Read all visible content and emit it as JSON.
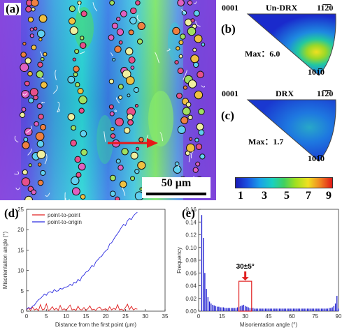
{
  "panel_labels": {
    "a": "(a)",
    "b": "(b)",
    "c": "(c)",
    "d": "(d)",
    "e": "(e)"
  },
  "map": {
    "scale_bar": "50 μm"
  },
  "ipf_top": {
    "title": "Un-DRX",
    "left_corner": "0001",
    "right_corner": "11̅2̅0",
    "bottom_corner": "101̅0",
    "max_label": "Max：6.0"
  },
  "ipf_bottom": {
    "title": "DRX",
    "left_corner": "0001",
    "right_corner": "11̅2̅0",
    "bottom_corner": "101̅0",
    "max_label": "Max：1.7"
  },
  "colorbar": {
    "ticks": [
      "1",
      "3",
      "5",
      "7",
      "9"
    ]
  },
  "colors": {
    "blue_series": "#2a2ae0",
    "red_series": "#e02020",
    "bar": "#2020d0",
    "highlight": "#e02020"
  },
  "chart_data": [
    {
      "type": "line",
      "ylabel": "Misorientation angle (°)",
      "xlabel": "Distance from the first point (μm)",
      "xlim": [
        0,
        35
      ],
      "ylim": [
        0,
        25
      ],
      "xticks": [
        "0",
        "5",
        "10",
        "15",
        "20",
        "25",
        "30",
        "35"
      ],
      "yticks": [
        "0",
        "5",
        "10",
        "15",
        "20",
        "25"
      ],
      "legend_placement": "top-left",
      "series": [
        {
          "name": "point-to-point",
          "color": "#e02020",
          "x": [
            0,
            0.5,
            1,
            1.5,
            2,
            2.5,
            3,
            3.5,
            4,
            4.5,
            5,
            5.5,
            6,
            6.5,
            7,
            7.5,
            8,
            8.5,
            9,
            9.5,
            10,
            10.5,
            11,
            11.5,
            12,
            12.5,
            13,
            13.5,
            14,
            14.5,
            15,
            15.5,
            16,
            16.5,
            17,
            17.5,
            18,
            18.5,
            19,
            19.5,
            20,
            20.5,
            21,
            21.5,
            22,
            22.5,
            23,
            23.5,
            24,
            24.5,
            25,
            25.5,
            26,
            26.5,
            27,
            27.5,
            28
          ],
          "y": [
            0.3,
            0.8,
            0.2,
            1.0,
            0.3,
            0.6,
            0.1,
            1.6,
            0.3,
            0.5,
            1.8,
            0.2,
            0.4,
            1.1,
            0.3,
            0.7,
            0.2,
            1.4,
            0.3,
            0.6,
            0.2,
            0.9,
            1.5,
            0.3,
            0.5,
            0.2,
            1.2,
            0.4,
            0.3,
            0.9,
            0.2,
            0.6,
            1.3,
            0.3,
            0.5,
            0.2,
            0.8,
            1.0,
            0.3,
            0.4,
            0.6,
            0.2,
            1.1,
            0.3,
            0.7,
            0.4,
            1.6,
            0.3,
            0.5,
            0.2,
            0.9,
            1.7,
            0.4,
            1.2,
            0.3,
            0.6,
            0.5
          ]
        },
        {
          "name": "point-to-origin",
          "color": "#2a2ae0",
          "x": [
            0,
            0.5,
            1,
            1.5,
            2,
            2.5,
            3,
            3.5,
            4,
            4.5,
            5,
            5.5,
            6,
            6.5,
            7,
            7.5,
            8,
            8.5,
            9,
            9.5,
            10,
            10.5,
            11,
            11.5,
            12,
            12.5,
            13,
            13.5,
            14,
            14.5,
            15,
            15.5,
            16,
            16.5,
            17,
            17.5,
            18,
            18.5,
            19,
            19.5,
            20,
            20.5,
            21,
            21.5,
            22,
            22.5,
            23,
            23.5,
            24,
            24.5,
            25,
            25.5,
            26,
            26.5,
            27,
            27.5,
            28
          ],
          "y": [
            0.4,
            0.9,
            0.6,
            1.2,
            1.5,
            2.2,
            2.8,
            3.1,
            3.6,
            4.2,
            3.9,
            4.6,
            4.8,
            4.5,
            5.3,
            4.9,
            5.0,
            5.6,
            5.4,
            5.8,
            5.9,
            6.1,
            6.6,
            6.3,
            7.1,
            6.9,
            7.8,
            7.4,
            8.5,
            8.9,
            9.6,
            9.8,
            10.4,
            11.2,
            11.0,
            12.1,
            12.6,
            13.2,
            13.5,
            14.3,
            14.8,
            15.2,
            16.5,
            16.8,
            17.6,
            18.4,
            19.0,
            19.8,
            20.6,
            21.3,
            21.0,
            22.2,
            22.7,
            22.5,
            23.4,
            23.9,
            24.3
          ]
        }
      ]
    },
    {
      "type": "bar",
      "ylabel": "Frequency",
      "xlabel": "Misorientation angle (°)",
      "xlim": [
        0,
        90
      ],
      "ylim": [
        0,
        0.16
      ],
      "xticks": [
        "0",
        "15",
        "30",
        "45",
        "60",
        "75",
        "90"
      ],
      "yticks": [
        "0.00",
        "0.02",
        "0.04",
        "0.06",
        "0.08",
        "0.10",
        "0.12",
        "0.14",
        "0.16"
      ],
      "annotation": "30±5°",
      "highlight_range": [
        25,
        35
      ],
      "x": [
        2,
        3,
        4,
        5,
        6,
        7,
        8,
        9,
        10,
        11,
        12,
        13,
        14,
        15,
        16,
        17,
        18,
        19,
        20,
        21,
        22,
        23,
        24,
        25,
        26,
        27,
        28,
        29,
        30,
        31,
        32,
        33,
        34,
        35,
        36,
        37,
        38,
        39,
        40,
        41,
        42,
        43,
        44,
        45,
        46,
        47,
        48,
        49,
        50,
        51,
        52,
        53,
        54,
        55,
        56,
        57,
        58,
        59,
        60,
        61,
        62,
        63,
        64,
        65,
        66,
        67,
        68,
        69,
        70,
        71,
        72,
        73,
        74,
        75,
        76,
        77,
        78,
        79,
        80,
        81,
        82,
        83,
        84,
        85,
        86,
        87,
        88,
        89,
        90
      ],
      "values": [
        0.151,
        0.115,
        0.06,
        0.035,
        0.022,
        0.015,
        0.012,
        0.01,
        0.009,
        0.008,
        0.007,
        0.007,
        0.006,
        0.006,
        0.006,
        0.005,
        0.005,
        0.005,
        0.005,
        0.005,
        0.005,
        0.005,
        0.005,
        0.006,
        0.007,
        0.008,
        0.009,
        0.01,
        0.008,
        0.007,
        0.006,
        0.005,
        0.005,
        0.005,
        0.004,
        0.004,
        0.004,
        0.004,
        0.004,
        0.004,
        0.004,
        0.004,
        0.004,
        0.004,
        0.004,
        0.004,
        0.004,
        0.004,
        0.004,
        0.004,
        0.004,
        0.004,
        0.004,
        0.004,
        0.004,
        0.004,
        0.004,
        0.004,
        0.004,
        0.004,
        0.004,
        0.004,
        0.004,
        0.004,
        0.004,
        0.004,
        0.004,
        0.004,
        0.004,
        0.004,
        0.004,
        0.004,
        0.004,
        0.004,
        0.004,
        0.004,
        0.004,
        0.004,
        0.004,
        0.004,
        0.004,
        0.004,
        0.005,
        0.005,
        0.006,
        0.008,
        0.012,
        0.024,
        0.004
      ]
    }
  ]
}
